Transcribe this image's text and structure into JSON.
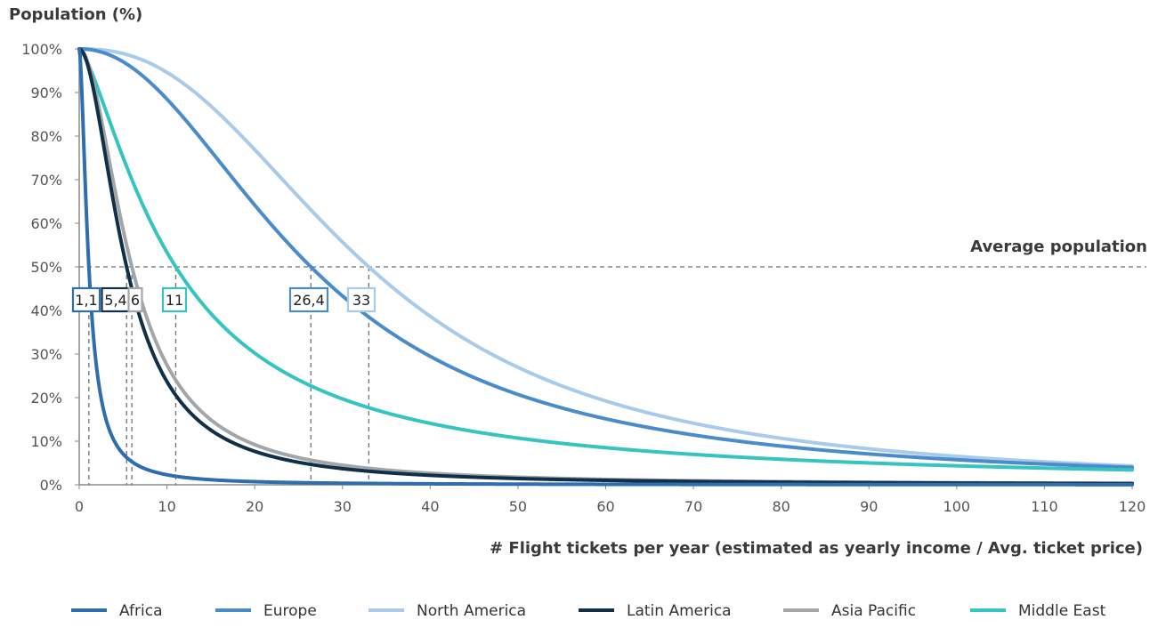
{
  "chart_data": {
    "type": "line",
    "ylabel": "Population (%)",
    "xlabel": "# Flight tickets per year (estimated as yearly income / Avg. ticket price)",
    "xlim": [
      0,
      120
    ],
    "ylim": [
      0,
      100
    ],
    "xticks": [
      0,
      10,
      20,
      30,
      40,
      50,
      60,
      70,
      80,
      90,
      100,
      110,
      120
    ],
    "yticks": [
      0,
      10,
      20,
      30,
      40,
      50,
      60,
      70,
      80,
      90,
      100
    ],
    "ytick_labels": [
      "0%",
      "10%",
      "20%",
      "30%",
      "40%",
      "50%",
      "60%",
      "70%",
      "80%",
      "90%",
      "100%"
    ],
    "reference_line": {
      "y": 50,
      "label": "Average population"
    },
    "series": [
      {
        "name": "Africa",
        "color": "#2e6db0",
        "median": 1.1,
        "shape": 1.7
      },
      {
        "name": "Europe",
        "color": "#4a8bcc",
        "median": 26.4,
        "shape": 2.1
      },
      {
        "name": "North America",
        "color": "#a9cbea",
        "median": 33,
        "shape": 2.4
      },
      {
        "name": "Latin America",
        "color": "#0f3048",
        "median": 5.4,
        "shape": 1.9
      },
      {
        "name": "Asia Pacific",
        "color": "#a3a6a9",
        "median": 6,
        "shape": 1.9
      },
      {
        "name": "Middle East",
        "color": "#35c4c0",
        "median": 11,
        "shape": 1.4
      }
    ],
    "annotations": [
      {
        "label": "1,1",
        "x": 1.1,
        "color": "#2e6db0"
      },
      {
        "label": "5,4",
        "x": 5.4,
        "color": "#0f3048"
      },
      {
        "label": "6",
        "x": 6,
        "color": "#a3a6a9"
      },
      {
        "label": "11",
        "x": 11,
        "color": "#35c4c0"
      },
      {
        "label": "26,4",
        "x": 26.4,
        "color": "#4a8bcc"
      },
      {
        "label": "33",
        "x": 33,
        "color": "#a9cbea"
      }
    ],
    "legend_position": "bottom"
  }
}
